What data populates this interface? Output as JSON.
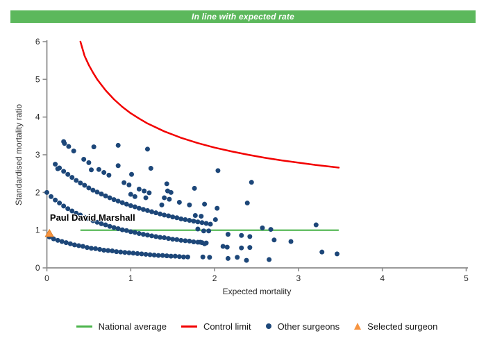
{
  "banner": {
    "text": "In line with expected rate",
    "bg_color": "#5cb85c",
    "text_color": "#ffffff"
  },
  "chart_data": {
    "type": "scatter",
    "xlabel": "Expected mortality",
    "ylabel": "Standardised mortality ratio",
    "xlim": [
      0,
      5
    ],
    "ylim": [
      0,
      6
    ],
    "x_ticks": [
      0,
      1,
      2,
      3,
      4,
      5
    ],
    "y_ticks": [
      0,
      1,
      2,
      3,
      4,
      5,
      6
    ],
    "grid": false,
    "legend_position": "bottom",
    "axis_color": "#8c8c8c",
    "annotation": {
      "text": "Paul David Marshall",
      "x": 0.02,
      "y": 1.25
    },
    "national_average": {
      "label": "National average",
      "color": "#4bb44b",
      "y": 1.0,
      "x_start": 0.4,
      "x_end": 3.48
    },
    "control_limit": {
      "label": "Control limit",
      "color": "#f20000",
      "points": [
        [
          0.4,
          6.0
        ],
        [
          0.45,
          5.62
        ],
        [
          0.5,
          5.38
        ],
        [
          0.55,
          5.18
        ],
        [
          0.6,
          5.0
        ],
        [
          0.7,
          4.71
        ],
        [
          0.8,
          4.47
        ],
        [
          0.9,
          4.27
        ],
        [
          1.0,
          4.1
        ],
        [
          1.1,
          3.96
        ],
        [
          1.2,
          3.83
        ],
        [
          1.4,
          3.62
        ],
        [
          1.6,
          3.45
        ],
        [
          1.8,
          3.31
        ],
        [
          2.0,
          3.19
        ],
        [
          2.2,
          3.09
        ],
        [
          2.4,
          3.0
        ],
        [
          2.6,
          2.92
        ],
        [
          2.8,
          2.85
        ],
        [
          3.0,
          2.79
        ],
        [
          3.2,
          2.73
        ],
        [
          3.4,
          2.68
        ],
        [
          3.48,
          2.66
        ]
      ]
    },
    "other_surgeons": {
      "label": "Other surgeons",
      "color": "#1d4779",
      "marker": "circle",
      "points": [
        [
          0.03,
          0.82
        ],
        [
          0.08,
          0.77
        ],
        [
          0.13,
          0.73
        ],
        [
          0.18,
          0.7
        ],
        [
          0.23,
          0.67
        ],
        [
          0.28,
          0.64
        ],
        [
          0.33,
          0.61
        ],
        [
          0.38,
          0.59
        ],
        [
          0.43,
          0.57
        ],
        [
          0.48,
          0.54
        ],
        [
          0.53,
          0.52
        ],
        [
          0.58,
          0.51
        ],
        [
          0.63,
          0.49
        ],
        [
          0.68,
          0.47
        ],
        [
          0.73,
          0.46
        ],
        [
          0.78,
          0.45
        ],
        [
          0.83,
          0.43
        ],
        [
          0.88,
          0.42
        ],
        [
          0.93,
          0.41
        ],
        [
          0.98,
          0.4
        ],
        [
          1.03,
          0.39
        ],
        [
          1.08,
          0.38
        ],
        [
          1.13,
          0.37
        ],
        [
          1.18,
          0.36
        ],
        [
          1.23,
          0.35
        ],
        [
          1.28,
          0.34
        ],
        [
          1.33,
          0.33
        ],
        [
          1.38,
          0.33
        ],
        [
          1.43,
          0.32
        ],
        [
          1.48,
          0.31
        ],
        [
          1.53,
          0.31
        ],
        [
          1.58,
          0.3
        ],
        [
          1.63,
          0.29
        ],
        [
          1.68,
          0.29
        ],
        [
          0.0,
          2.0
        ],
        [
          0.05,
          1.89
        ],
        [
          0.1,
          1.8
        ],
        [
          0.15,
          1.72
        ],
        [
          0.2,
          1.64
        ],
        [
          0.25,
          1.57
        ],
        [
          0.3,
          1.51
        ],
        [
          0.35,
          1.45
        ],
        [
          0.4,
          1.4
        ],
        [
          0.45,
          1.34
        ],
        [
          0.5,
          1.3
        ],
        [
          0.55,
          1.25
        ],
        [
          0.6,
          1.21
        ],
        [
          0.65,
          1.17
        ],
        [
          0.7,
          1.14
        ],
        [
          0.75,
          1.1
        ],
        [
          0.8,
          1.07
        ],
        [
          0.85,
          1.04
        ],
        [
          0.9,
          1.01
        ],
        [
          0.95,
          0.99
        ],
        [
          1.0,
          0.96
        ],
        [
          1.05,
          0.94
        ],
        [
          1.1,
          0.91
        ],
        [
          1.15,
          0.89
        ],
        [
          1.2,
          0.87
        ],
        [
          1.25,
          0.85
        ],
        [
          1.3,
          0.83
        ],
        [
          1.35,
          0.81
        ],
        [
          1.4,
          0.8
        ],
        [
          1.45,
          0.78
        ],
        [
          1.5,
          0.76
        ],
        [
          1.55,
          0.75
        ],
        [
          1.6,
          0.73
        ],
        [
          1.65,
          0.72
        ],
        [
          1.7,
          0.71
        ],
        [
          1.75,
          0.69
        ],
        [
          1.8,
          0.68
        ],
        [
          1.85,
          0.67
        ],
        [
          1.9,
          0.66
        ],
        [
          0.1,
          2.75
        ],
        [
          0.15,
          2.65
        ],
        [
          0.2,
          2.56
        ],
        [
          0.25,
          2.48
        ],
        [
          0.3,
          2.4
        ],
        [
          0.35,
          2.32
        ],
        [
          0.4,
          2.25
        ],
        [
          0.45,
          2.19
        ],
        [
          0.5,
          2.12
        ],
        [
          0.55,
          2.06
        ],
        [
          0.6,
          2.01
        ],
        [
          0.65,
          1.96
        ],
        [
          0.7,
          1.91
        ],
        [
          0.75,
          1.86
        ],
        [
          0.8,
          1.81
        ],
        [
          0.85,
          1.77
        ],
        [
          0.9,
          1.73
        ],
        [
          0.95,
          1.69
        ],
        [
          1.0,
          1.65
        ],
        [
          1.05,
          1.62
        ],
        [
          1.1,
          1.58
        ],
        [
          1.15,
          1.55
        ],
        [
          1.2,
          1.52
        ],
        [
          1.25,
          1.49
        ],
        [
          1.3,
          1.46
        ],
        [
          1.35,
          1.43
        ],
        [
          1.4,
          1.4
        ],
        [
          1.45,
          1.38
        ],
        [
          1.5,
          1.35
        ],
        [
          1.55,
          1.33
        ],
        [
          1.6,
          1.3
        ],
        [
          1.65,
          1.28
        ],
        [
          1.7,
          1.26
        ],
        [
          1.75,
          1.24
        ],
        [
          1.8,
          1.22
        ],
        [
          1.85,
          1.2
        ],
        [
          1.9,
          1.18
        ],
        [
          1.95,
          1.16
        ],
        [
          0.2,
          3.35
        ],
        [
          0.26,
          3.22
        ],
        [
          0.32,
          3.1
        ],
        [
          0.44,
          2.88
        ],
        [
          0.5,
          2.79
        ],
        [
          0.62,
          2.61
        ],
        [
          0.68,
          2.53
        ],
        [
          0.74,
          2.46
        ],
        [
          0.92,
          2.26
        ],
        [
          0.98,
          2.2
        ],
        [
          1.1,
          2.09
        ],
        [
          1.16,
          2.04
        ],
        [
          1.22,
          1.99
        ],
        [
          1.4,
          1.86
        ],
        [
          1.46,
          1.82
        ],
        [
          1.58,
          1.74
        ],
        [
          1.7,
          1.67
        ],
        [
          0.21,
          3.3
        ],
        [
          0.56,
          3.21
        ],
        [
          0.85,
          3.25
        ],
        [
          1.2,
          3.15
        ],
        [
          0.13,
          2.63
        ],
        [
          0.53,
          2.6
        ],
        [
          1.01,
          2.48
        ],
        [
          1.24,
          2.64
        ],
        [
          0.85,
          2.71
        ],
        [
          1.44,
          2.04
        ],
        [
          1.48,
          2.0
        ],
        [
          1.37,
          1.67
        ],
        [
          1.0,
          1.95
        ],
        [
          1.05,
          1.89
        ],
        [
          1.18,
          1.86
        ],
        [
          1.43,
          2.23
        ],
        [
          1.76,
          2.11
        ],
        [
          2.04,
          2.58
        ],
        [
          2.44,
          2.27
        ],
        [
          1.88,
          1.69
        ],
        [
          2.03,
          1.58
        ],
        [
          2.39,
          1.72
        ],
        [
          1.77,
          1.39
        ],
        [
          1.84,
          1.37
        ],
        [
          2.01,
          1.28
        ],
        [
          1.8,
          1.03
        ],
        [
          1.87,
          0.98
        ],
        [
          1.93,
          0.98
        ],
        [
          2.57,
          1.06
        ],
        [
          2.67,
          1.02
        ],
        [
          3.21,
          1.14
        ],
        [
          2.16,
          0.89
        ],
        [
          2.32,
          0.86
        ],
        [
          2.42,
          0.83
        ],
        [
          2.71,
          0.74
        ],
        [
          2.91,
          0.7
        ],
        [
          1.83,
          0.68
        ],
        [
          1.88,
          0.64
        ],
        [
          2.1,
          0.57
        ],
        [
          2.15,
          0.55
        ],
        [
          2.32,
          0.53
        ],
        [
          2.42,
          0.54
        ],
        [
          1.86,
          0.29
        ],
        [
          1.94,
          0.28
        ],
        [
          2.16,
          0.25
        ],
        [
          2.27,
          0.28
        ],
        [
          2.38,
          0.2
        ],
        [
          2.65,
          0.22
        ],
        [
          3.28,
          0.42
        ],
        [
          3.46,
          0.37
        ]
      ]
    },
    "selected_surgeon": {
      "label": "Selected surgeon",
      "color": "#f79440",
      "marker": "triangle",
      "points": [
        [
          0.03,
          0.92
        ]
      ]
    }
  }
}
